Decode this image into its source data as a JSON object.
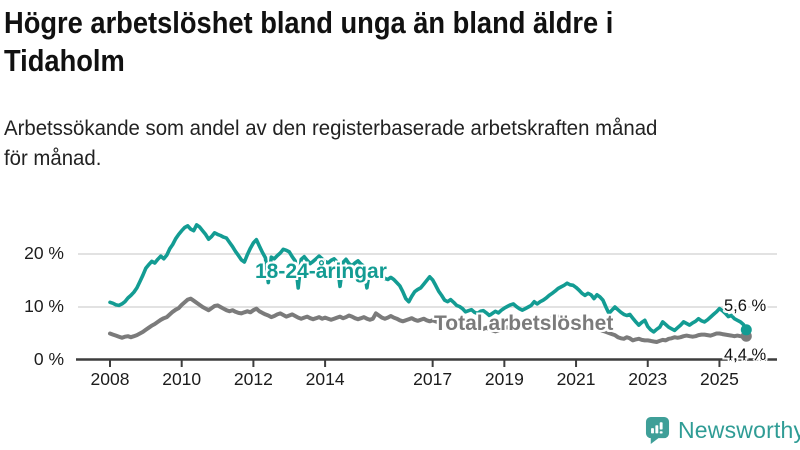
{
  "header": {
    "title_lines": [
      "Högre arbetslöshet bland unga än bland äldre i",
      "Tidaholm"
    ],
    "subtitle_lines": [
      "Arbetssökande som andel av den registerbaserade arbetskraften månad",
      "för månad."
    ]
  },
  "chart_data": {
    "type": "line",
    "title": "Högre arbetslöshet bland unga än bland äldre i Tidaholm",
    "subtitle": "Arbetssökande som andel av den registerbaserade arbetskraften månad för månad.",
    "x_unit": "monthly",
    "x_start_year": 2008,
    "x_end": "2025-10",
    "x_ticks": [
      "2008",
      "2010",
      "2012",
      "2014",
      "2017",
      "2019",
      "2021",
      "2023",
      "2025"
    ],
    "y_ticks": [
      "0 %",
      "10 %",
      "20 %"
    ],
    "ylim": [
      0,
      27
    ],
    "grid": true,
    "legend_position": "inline-labels",
    "axis_color": "#3d3d3d",
    "grid_color": "#d9d9d9",
    "series": [
      {
        "name": "Total arbetslöshet",
        "color": "#7b7b7b",
        "end_label": "4,4 %",
        "end_value": 4.4,
        "values": [
          4.9,
          4.7,
          4.5,
          4.3,
          4.1,
          4.3,
          4.4,
          4.2,
          4.4,
          4.6,
          4.9,
          5.2,
          5.6,
          6.0,
          6.4,
          6.7,
          7.1,
          7.5,
          7.8,
          8.0,
          8.5,
          9.0,
          9.4,
          9.7,
          10.3,
          10.8,
          11.3,
          11.5,
          11.1,
          10.7,
          10.3,
          9.9,
          9.6,
          9.3,
          9.7,
          10.1,
          10.2,
          9.9,
          9.6,
          9.3,
          9.1,
          9.3,
          9.0,
          8.8,
          8.7,
          8.9,
          9.1,
          8.9,
          9.3,
          9.6,
          9.1,
          8.8,
          8.5,
          8.3,
          8.0,
          8.2,
          8.5,
          8.7,
          8.4,
          8.1,
          8.3,
          8.5,
          8.2,
          7.9,
          7.7,
          7.9,
          8.1,
          7.8,
          7.6,
          7.8,
          8.0,
          7.7,
          7.9,
          7.7,
          7.5,
          7.7,
          7.9,
          8.1,
          7.8,
          8.0,
          8.3,
          8.1,
          7.8,
          7.6,
          7.8,
          8.0,
          7.7,
          7.5,
          7.7,
          8.7,
          8.3,
          7.9,
          7.7,
          7.9,
          8.2,
          7.9,
          7.7,
          7.4,
          7.2,
          7.4,
          7.6,
          7.8,
          7.5,
          7.3,
          7.5,
          7.7,
          7.4,
          7.2,
          7.4,
          7.2,
          7.0,
          6.8,
          6.6,
          6.8,
          7.0,
          6.7,
          6.5,
          6.3,
          6.1,
          5.9,
          6.1,
          6.3,
          6.0,
          5.8,
          5.6,
          5.8,
          6.0,
          5.7,
          5.5,
          5.3,
          5.5,
          5.7,
          5.9,
          6.1,
          5.8,
          5.6,
          5.8,
          6.0,
          6.2,
          5.9,
          5.7,
          5.9,
          6.1,
          6.3,
          6.5,
          6.8,
          7.1,
          7.5,
          7.8,
          8.0,
          8.1,
          7.8,
          7.6,
          7.4,
          7.2,
          7.0,
          6.8,
          6.6,
          6.4,
          6.2,
          6.0,
          6.2,
          6.0,
          5.8,
          5.6,
          5.4,
          5.2,
          5.0,
          4.8,
          4.6,
          4.2,
          4.0,
          3.9,
          4.2,
          4.0,
          3.6,
          3.8,
          3.9,
          3.7,
          3.6,
          3.6,
          3.5,
          3.4,
          3.3,
          3.5,
          3.7,
          3.6,
          3.9,
          4.0,
          4.2,
          4.1,
          4.2,
          4.4,
          4.5,
          4.4,
          4.3,
          4.4,
          4.6,
          4.7,
          4.7,
          4.6,
          4.5,
          4.7,
          4.9,
          4.9,
          4.8,
          4.7,
          4.6,
          4.5,
          4.4,
          4.5,
          4.4,
          4.3,
          4.4
        ]
      },
      {
        "name": "18-24-åringar",
        "color": "#139c93",
        "end_label": "5,6 %",
        "end_value": 5.6,
        "values": [
          10.8,
          10.6,
          10.3,
          10.2,
          10.5,
          10.9,
          11.6,
          12.1,
          12.7,
          13.5,
          14.7,
          15.9,
          17.2,
          17.9,
          18.5,
          18.2,
          18.9,
          19.5,
          19.0,
          19.7,
          20.9,
          21.7,
          22.8,
          23.6,
          24.3,
          24.9,
          25.2,
          24.6,
          24.3,
          25.4,
          25.0,
          24.3,
          23.6,
          22.7,
          23.2,
          23.9,
          23.6,
          23.4,
          23.1,
          22.9,
          22.1,
          21.3,
          20.4,
          19.6,
          18.8,
          18.4,
          19.8,
          21.0,
          22.0,
          22.6,
          21.4,
          20.2,
          19.2,
          14.5,
          19.3,
          19.0,
          19.6,
          20.1,
          20.8,
          20.6,
          20.3,
          19.4,
          18.6,
          13.5,
          18.9,
          19.4,
          18.7,
          18.1,
          18.5,
          19.0,
          19.5,
          19.0,
          18.5,
          18.2,
          18.7,
          19.0,
          18.4,
          13.8,
          18.3,
          18.9,
          18.1,
          17.7,
          18.2,
          18.6,
          18.0,
          17.6,
          13.5,
          17.3,
          16.7,
          17.0,
          16.3,
          15.8,
          15.3,
          15.1,
          15.5,
          15.1,
          14.5,
          13.9,
          12.8,
          11.5,
          10.9,
          11.9,
          12.8,
          13.2,
          13.5,
          14.2,
          14.9,
          15.6,
          15.0,
          14.0,
          12.9,
          12.1,
          11.2,
          10.9,
          11.3,
          10.8,
          10.2,
          10.0,
          9.6,
          9.0,
          9.2,
          9.4,
          8.9,
          8.7,
          9.1,
          9.2,
          8.8,
          8.3,
          8.7,
          9.1,
          8.8,
          9.3,
          9.7,
          10.0,
          10.3,
          10.5,
          10.0,
          9.6,
          9.3,
          9.6,
          9.9,
          10.2,
          10.9,
          10.5,
          10.9,
          11.2,
          11.6,
          12.1,
          12.5,
          12.9,
          13.4,
          13.7,
          14.0,
          14.4,
          14.1,
          14.0,
          13.6,
          13.1,
          12.5,
          12.1,
          12.5,
          12.2,
          11.5,
          12.2,
          11.8,
          11.2,
          9.9,
          8.7,
          9.3,
          9.9,
          9.4,
          8.9,
          8.5,
          8.3,
          8.5,
          7.8,
          7.1,
          6.5,
          7.0,
          7.4,
          6.2,
          5.6,
          5.2,
          5.7,
          6.1,
          7.1,
          6.6,
          6.1,
          5.8,
          5.5,
          6.0,
          6.5,
          7.1,
          6.8,
          6.5,
          6.9,
          7.2,
          7.7,
          7.3,
          7.1,
          7.5,
          8.0,
          8.5,
          9.0,
          9.6,
          9.2,
          8.7,
          8.1,
          8.3,
          7.7,
          7.4,
          7.1,
          6.6,
          5.6
        ]
      }
    ]
  },
  "branding": {
    "logo_text": "Newsworthy",
    "logo_color": "#2f9c95",
    "icon_color": "#3f9f98"
  }
}
